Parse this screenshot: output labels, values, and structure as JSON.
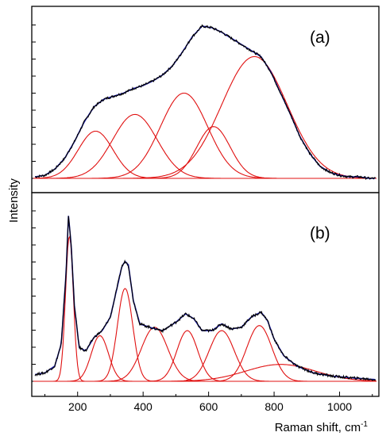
{
  "chart_data": [
    {
      "type": "line",
      "panel_label": "(a)",
      "ylabel": "Intensity",
      "xlim": [
        60,
        1120
      ],
      "ylim": [
        0,
        100
      ],
      "colors": {
        "measured": "#000000",
        "fit": "#1a1aa8",
        "components": "#e01010"
      },
      "components": [
        {
          "center": 255,
          "amplitude": 31,
          "fwhm": 125
        },
        {
          "center": 375,
          "amplitude": 42,
          "fwhm": 160
        },
        {
          "center": 525,
          "amplitude": 56,
          "fwhm": 170
        },
        {
          "center": 615,
          "amplitude": 34,
          "fwhm": 120
        },
        {
          "center": 740,
          "amplitude": 80,
          "fwhm": 235
        }
      ],
      "series": [
        {
          "x": [
            70,
            100,
            130,
            160,
            190,
            220,
            250,
            280,
            310,
            340,
            370,
            400,
            430,
            460,
            490,
            520,
            550,
            580,
            610,
            640,
            670,
            700,
            730,
            760,
            790,
            820,
            850,
            880,
            910,
            940,
            970,
            1000,
            1030,
            1060,
            1090,
            1110
          ],
          "values": [
            1,
            2,
            6,
            13,
            24,
            37,
            47,
            52,
            54,
            56,
            59,
            61,
            64,
            68,
            74,
            83,
            93,
            100,
            99,
            96,
            92,
            88,
            84,
            80,
            70,
            56,
            42,
            27,
            16,
            8,
            4,
            2,
            1,
            1,
            0,
            0
          ]
        }
      ]
    },
    {
      "type": "line",
      "panel_label": "(b)",
      "xlabel": "Raman shift, cm",
      "xlabel_superscript": "-1",
      "xlim": [
        60,
        1120
      ],
      "ylim": [
        0,
        100
      ],
      "x_ticks": [
        200,
        400,
        600,
        800,
        1000
      ],
      "colors": {
        "measured": "#000000",
        "fit": "#1a1aa8",
        "components": "#e01010"
      },
      "components": [
        {
          "center": 175,
          "amplitude": 86,
          "fwhm": 28
        },
        {
          "center": 268,
          "amplitude": 27,
          "fwhm": 62
        },
        {
          "center": 345,
          "amplitude": 55,
          "fwhm": 55
        },
        {
          "center": 435,
          "amplitude": 32,
          "fwhm": 95
        },
        {
          "center": 535,
          "amplitude": 30,
          "fwhm": 75
        },
        {
          "center": 640,
          "amplitude": 30,
          "fwhm": 90
        },
        {
          "center": 755,
          "amplitude": 33,
          "fwhm": 90
        },
        {
          "center": 820,
          "amplitude": 10,
          "fwhm": 250
        }
      ],
      "series": [
        {
          "x": [
            70,
            100,
            130,
            150,
            165,
            172,
            180,
            190,
            205,
            225,
            250,
            275,
            300,
            320,
            335,
            345,
            355,
            370,
            390,
            420,
            460,
            500,
            530,
            555,
            580,
            610,
            640,
            670,
            700,
            730,
            760,
            780,
            800,
            830,
            870,
            920,
            980,
            1040,
            1110
          ],
          "values": [
            4,
            5,
            9,
            22,
            65,
            98,
            82,
            45,
            20,
            18,
            26,
            30,
            38,
            55,
            68,
            71,
            69,
            48,
            34,
            32,
            30,
            35,
            40,
            37,
            30,
            30,
            34,
            31,
            32,
            38,
            41,
            36,
            25,
            15,
            9,
            5,
            3,
            2,
            1
          ]
        }
      ]
    }
  ]
}
